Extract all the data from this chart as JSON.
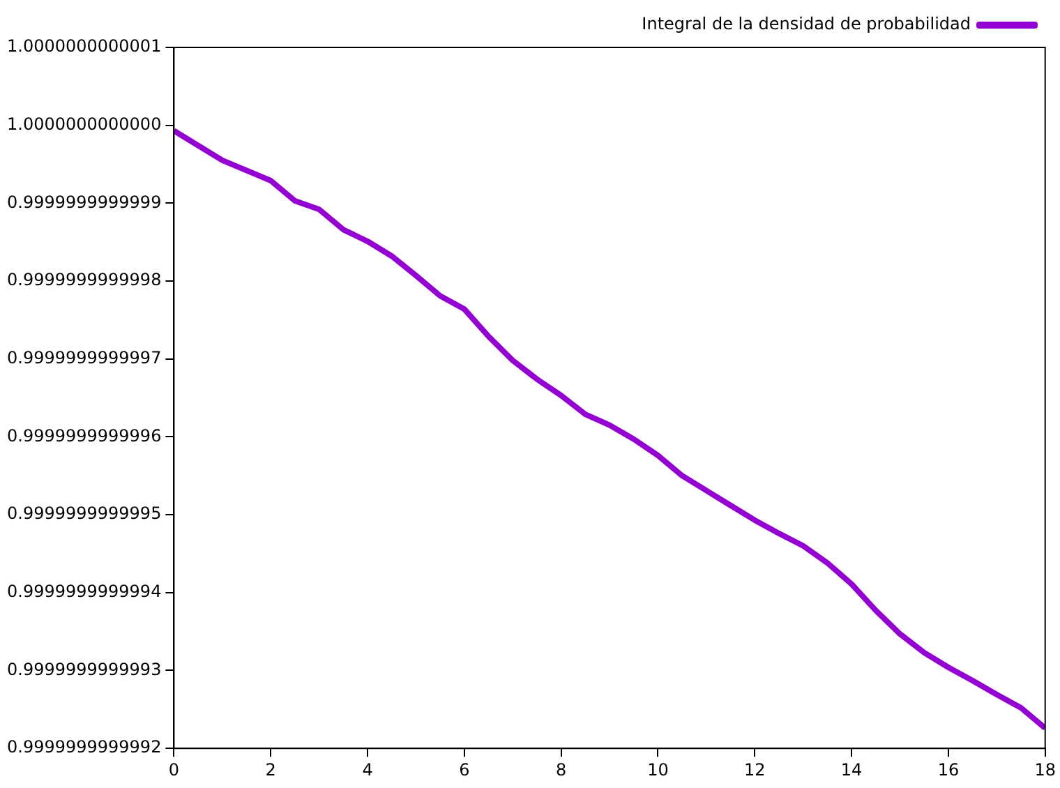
{
  "chart_data": {
    "type": "line",
    "x": [
      0,
      1,
      2,
      2.5,
      3,
      3.5,
      4,
      4.5,
      5,
      5.5,
      6,
      6.5,
      7,
      7.5,
      8,
      8.5,
      9,
      9.5,
      10,
      10.5,
      11,
      11.5,
      12,
      12.5,
      13,
      13.5,
      14,
      14.5,
      15,
      15.5,
      16,
      16.5,
      17,
      17.5,
      18
    ],
    "series": [
      {
        "name": "Integral de la densidad de probabilidad",
        "color": "#9400d3",
        "values": [
          0.999999999999993,
          0.999999999999955,
          0.999999999999929,
          0.999999999999903,
          0.999999999999892,
          0.999999999999866,
          0.999999999999851,
          0.999999999999832,
          0.999999999999807,
          0.999999999999781,
          0.999999999999764,
          0.999999999999729,
          0.999999999999698,
          0.999999999999674,
          0.999999999999653,
          0.999999999999629,
          0.999999999999615,
          0.999999999999597,
          0.999999999999576,
          0.99999999999955,
          0.999999999999531,
          0.999999999999512,
          0.999999999999493,
          0.999999999999476,
          0.99999999999946,
          0.999999999999438,
          0.999999999999411,
          0.999999999999377,
          0.999999999999347,
          0.999999999999323,
          0.999999999999304,
          0.999999999999287,
          0.999999999999269,
          0.999999999999252,
          0.999999999999226
        ]
      }
    ],
    "xlim": [
      0,
      18
    ],
    "xticks": [
      0,
      2,
      4,
      6,
      8,
      10,
      12,
      14,
      16,
      18
    ],
    "ylim": [
      0.9999999999992,
      1.0000000000001
    ],
    "yticks": [
      0.9999999999992,
      0.9999999999993,
      0.9999999999994,
      0.9999999999995,
      0.9999999999996,
      0.9999999999997,
      0.9999999999998,
      0.9999999999999,
      {
        "value": 1,
        "label": "1.0000000000000"
      },
      1.0000000000001
    ],
    "grid": false,
    "legend": "top right",
    "marker": "none",
    "line_style": "solid"
  }
}
